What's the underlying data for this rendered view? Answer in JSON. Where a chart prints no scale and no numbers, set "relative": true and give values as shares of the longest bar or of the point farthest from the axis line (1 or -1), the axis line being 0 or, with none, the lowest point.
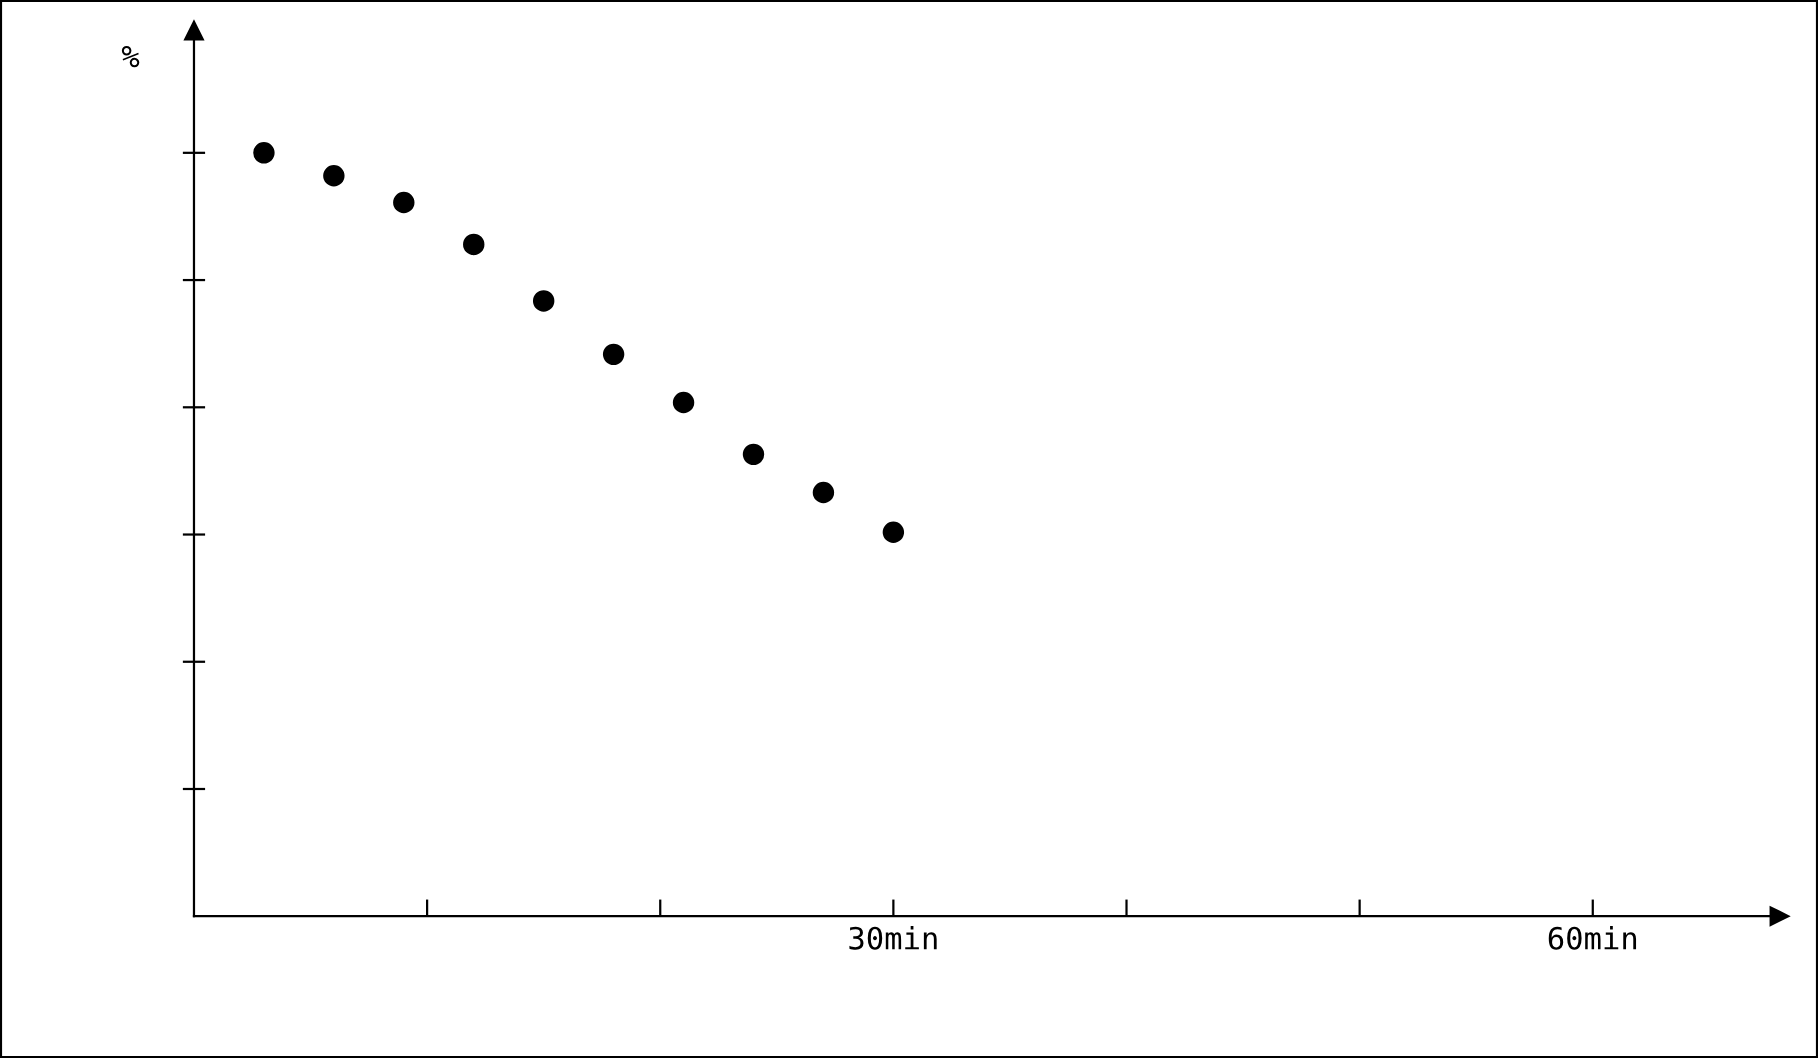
{
  "chart_data": {
    "type": "scatter",
    "ylabel": "%",
    "relative": true,
    "marker": "circle",
    "color": "#000000",
    "x": [
      3,
      6,
      9,
      12,
      15,
      18,
      21,
      24,
      27,
      30
    ],
    "values": [
      1,
      0.97,
      0.935,
      0.88,
      0.806,
      0.736,
      0.673,
      0.605,
      0.555,
      0.503
    ],
    "xlim": [
      0,
      68
    ],
    "xticks": [
      {
        "value": 10,
        "label": null
      },
      {
        "value": 20,
        "label": null
      },
      {
        "value": 30,
        "label": "30min"
      },
      {
        "value": 40,
        "label": null
      },
      {
        "value": 50,
        "label": null
      },
      {
        "value": 60,
        "label": "60min"
      }
    ],
    "tick_labels": "x",
    "grid": false
  }
}
